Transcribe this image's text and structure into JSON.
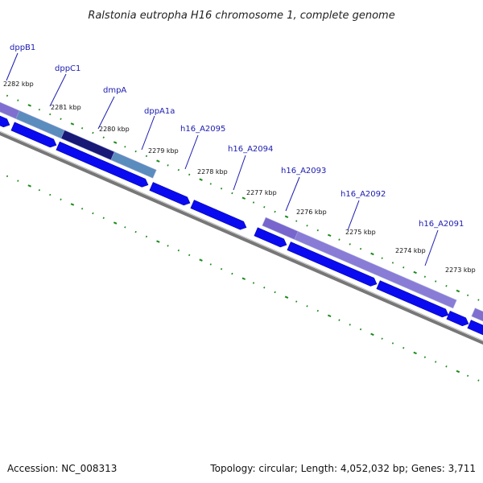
{
  "title": "Ralstonia eutropha H16 chromosome 1, complete genome",
  "footer": {
    "accession": "Accession: NC_008313",
    "summary": "Topology: circular; Length: 4,052,032 bp; Genes: 3,711"
  },
  "colors": {
    "cds": "#0a0af0",
    "feature_blue": "#4a80b8",
    "feature_purple": "#6a55c8",
    "feature_dark": "#0c0c70",
    "backbone": "#777777",
    "tick": "#1a8a1a",
    "gene_label": "#1a1ab0"
  },
  "gene_labels": [
    "dppB1",
    "dppC1",
    "dmpA",
    "dppA1a",
    "h16_A2095",
    "h16_A2094",
    "h16_A2093",
    "h16_A2092",
    "h16_A2091"
  ],
  "kbp_labels": [
    "2282 kbp",
    "2281 kbp",
    "2280 kbp",
    "2279 kbp",
    "2278 kbp",
    "2277 kbp",
    "2276 kbp",
    "2275 kbp",
    "2274 kbp",
    "2273 kbp"
  ]
}
